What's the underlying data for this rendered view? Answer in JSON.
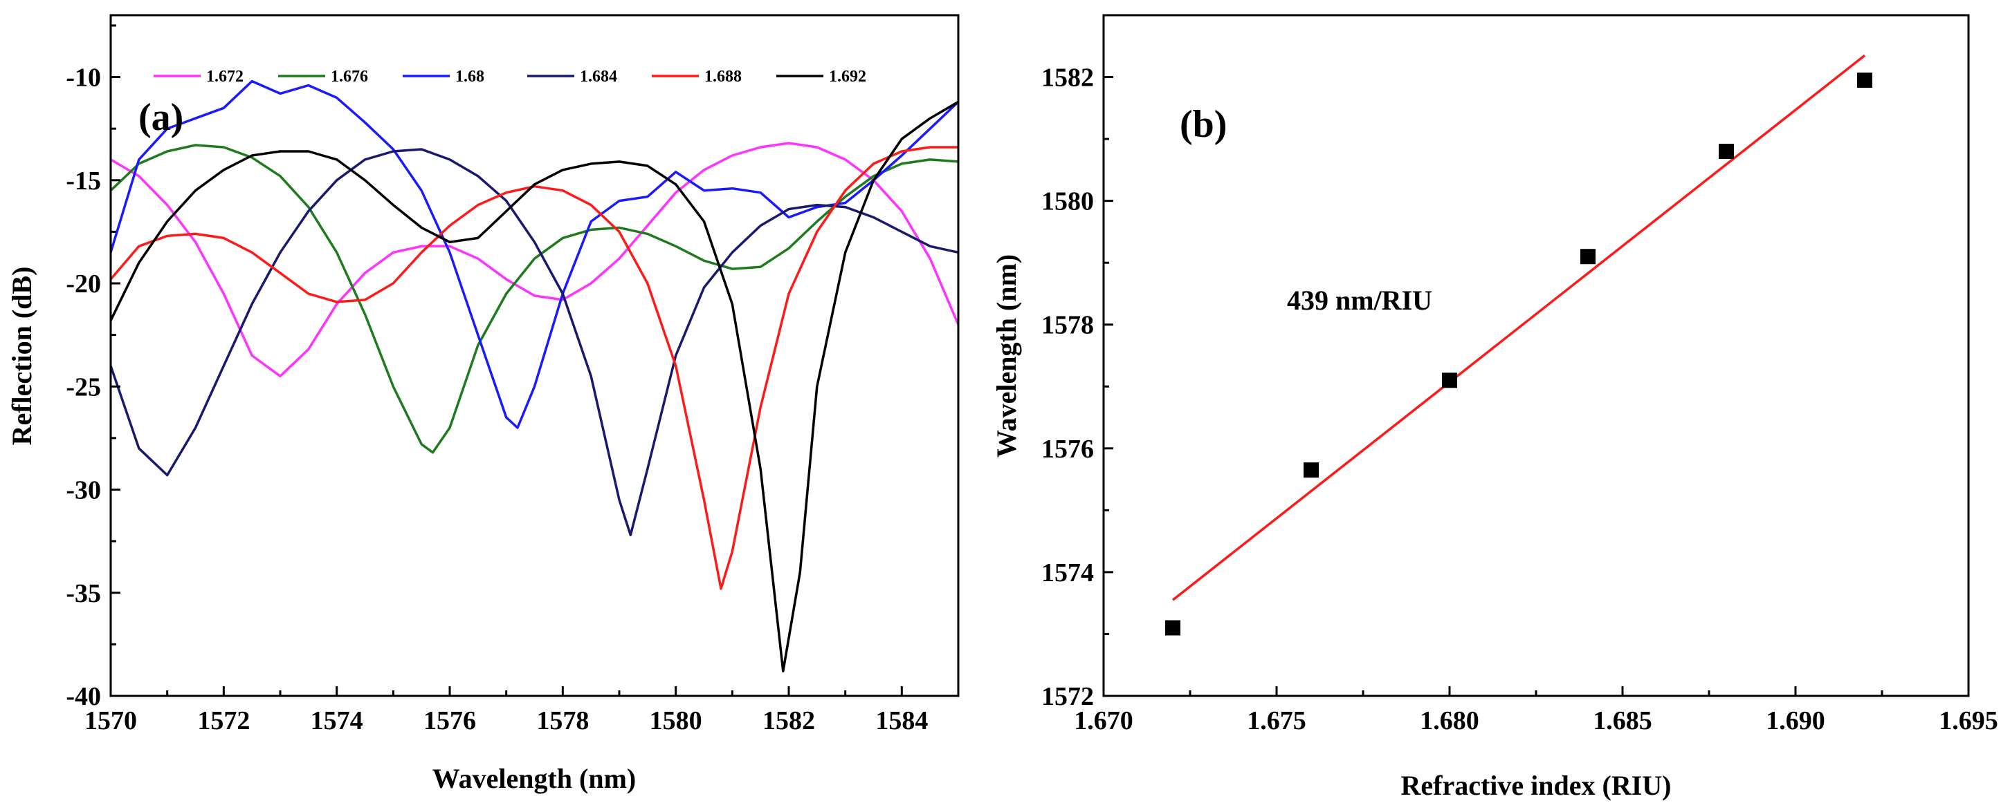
{
  "colors": {
    "s1672": "#ff33ff",
    "s1676": "#1e7b1e",
    "s168": "#1a1aff",
    "s1684": "#191970",
    "s1688": "#ff1a1a",
    "s1692": "#000000",
    "fit": "#ff1a1a",
    "points": "#000000"
  },
  "chart_data": [
    {
      "panel": "(a)",
      "type": "line",
      "xlabel": "Wavelength (nm)",
      "ylabel": "Reflection (dB)",
      "xlim": [
        1570,
        1585
      ],
      "ylim": [
        -40,
        -7
      ],
      "xticks": [
        1570,
        1572,
        1574,
        1576,
        1578,
        1580,
        1582,
        1584
      ],
      "yticks": [
        -40,
        -35,
        -30,
        -25,
        -20,
        -15,
        -10
      ],
      "legend_position": "top",
      "series": [
        {
          "name": "1.672",
          "color_key": "s1672",
          "x": [
            1570,
            1570.5,
            1571,
            1571.5,
            1572,
            1572.5,
            1573,
            1573.5,
            1574,
            1574.5,
            1575,
            1575.5,
            1576,
            1576.5,
            1577,
            1577.5,
            1578,
            1578.5,
            1579,
            1579.5,
            1580,
            1580.5,
            1581,
            1581.5,
            1582,
            1582.5,
            1583,
            1583.5,
            1584,
            1584.5,
            1585
          ],
          "y": [
            -14,
            -14.8,
            -16.2,
            -18,
            -20.5,
            -23.5,
            -24.5,
            -23.2,
            -21,
            -19.5,
            -18.5,
            -18.2,
            -18.2,
            -18.8,
            -19.8,
            -20.6,
            -20.8,
            -20,
            -18.8,
            -17.2,
            -15.6,
            -14.5,
            -13.8,
            -13.4,
            -13.2,
            -13.4,
            -14,
            -15,
            -16.5,
            -18.8,
            -22
          ]
        },
        {
          "name": "1.676",
          "color_key": "s1676",
          "x": [
            1570,
            1570.5,
            1571,
            1571.5,
            1572,
            1572.5,
            1573,
            1573.5,
            1574,
            1574.5,
            1575,
            1575.5,
            1575.7,
            1576,
            1576.5,
            1577,
            1577.5,
            1578,
            1578.5,
            1579,
            1579.5,
            1580,
            1580.5,
            1581,
            1581.5,
            1582,
            1582.5,
            1583,
            1583.5,
            1584,
            1584.5,
            1585
          ],
          "y": [
            -15.5,
            -14.2,
            -13.6,
            -13.3,
            -13.4,
            -13.9,
            -14.8,
            -16.3,
            -18.5,
            -21.5,
            -25,
            -27.8,
            -28.2,
            -27,
            -23,
            -20.5,
            -18.8,
            -17.8,
            -17.4,
            -17.3,
            -17.6,
            -18.2,
            -18.9,
            -19.3,
            -19.2,
            -18.3,
            -17,
            -15.8,
            -14.8,
            -14.2,
            -14,
            -14.1
          ]
        },
        {
          "name": "1.68",
          "color_key": "s168",
          "x": [
            1570,
            1570.5,
            1571,
            1571.5,
            1572,
            1572.5,
            1573,
            1573.5,
            1574,
            1574.5,
            1575,
            1575.5,
            1576,
            1576.5,
            1577,
            1577.2,
            1577.5,
            1578,
            1578.5,
            1579,
            1579.5,
            1580,
            1580.5,
            1581,
            1581.5,
            1582,
            1582.5,
            1583,
            1583.5,
            1584,
            1584.5,
            1585
          ],
          "y": [
            -18.5,
            -14,
            -12.5,
            -12,
            -11.5,
            -10.2,
            -10.8,
            -10.4,
            -11,
            -12.2,
            -13.5,
            -15.5,
            -18.5,
            -22.5,
            -26.5,
            -27,
            -25,
            -20.5,
            -17,
            -16,
            -15.8,
            -14.6,
            -15.5,
            -15.4,
            -15.6,
            -16.8,
            -16.3,
            -16.1,
            -15,
            -13.8,
            -12.5,
            -11.2
          ]
        },
        {
          "name": "1.684",
          "color_key": "s1684",
          "x": [
            1570,
            1570.5,
            1571,
            1571.5,
            1572,
            1572.5,
            1573,
            1573.5,
            1574,
            1574.5,
            1575,
            1575.5,
            1576,
            1576.5,
            1577,
            1577.5,
            1578,
            1578.5,
            1579,
            1579.2,
            1579.5,
            1580,
            1580.5,
            1581,
            1581.5,
            1582,
            1582.5,
            1583,
            1583.5,
            1584,
            1584.5,
            1585
          ],
          "y": [
            -24,
            -28,
            -29.3,
            -27,
            -24,
            -21,
            -18.5,
            -16.5,
            -15,
            -14,
            -13.6,
            -13.5,
            -14,
            -14.8,
            -16,
            -18,
            -20.5,
            -24.5,
            -30.5,
            -32.2,
            -29,
            -23.5,
            -20.2,
            -18.5,
            -17.2,
            -16.4,
            -16.2,
            -16.3,
            -16.8,
            -17.5,
            -18.2,
            -18.5
          ]
        },
        {
          "name": "1.688",
          "color_key": "s1688",
          "x": [
            1570,
            1570.5,
            1571,
            1571.5,
            1572,
            1572.5,
            1573,
            1573.5,
            1574,
            1574.5,
            1575,
            1575.5,
            1576,
            1576.5,
            1577,
            1577.5,
            1578,
            1578.5,
            1579,
            1579.5,
            1580,
            1580.5,
            1580.8,
            1581,
            1581.5,
            1582,
            1582.5,
            1583,
            1583.5,
            1584,
            1584.5,
            1585
          ],
          "y": [
            -19.8,
            -18.2,
            -17.7,
            -17.6,
            -17.8,
            -18.5,
            -19.5,
            -20.5,
            -20.9,
            -20.8,
            -20,
            -18.5,
            -17.2,
            -16.2,
            -15.6,
            -15.3,
            -15.5,
            -16.2,
            -17.5,
            -20,
            -24,
            -30.5,
            -34.8,
            -33,
            -26,
            -20.5,
            -17.5,
            -15.5,
            -14.2,
            -13.6,
            -13.4,
            -13.4
          ]
        },
        {
          "name": "1.692",
          "color_key": "s1692",
          "x": [
            1570,
            1570.5,
            1571,
            1571.5,
            1572,
            1572.5,
            1573,
            1573.5,
            1574,
            1574.5,
            1575,
            1575.5,
            1576,
            1576.5,
            1577,
            1577.5,
            1578,
            1578.5,
            1579,
            1579.5,
            1580,
            1580.5,
            1581,
            1581.5,
            1581.9,
            1582.2,
            1582.5,
            1583,
            1583.5,
            1584,
            1584.5,
            1585
          ],
          "y": [
            -21.8,
            -19,
            -17,
            -15.5,
            -14.5,
            -13.8,
            -13.6,
            -13.6,
            -14,
            -15,
            -16.2,
            -17.3,
            -18,
            -17.8,
            -16.5,
            -15.2,
            -14.5,
            -14.2,
            -14.1,
            -14.3,
            -15.2,
            -17,
            -21,
            -29,
            -38.8,
            -34,
            -25,
            -18.5,
            -15,
            -13,
            -12,
            -11.2
          ]
        }
      ]
    },
    {
      "panel": "(b)",
      "type": "scatter",
      "xlabel": "Refractive index (RIU)",
      "ylabel": "Wavelength (nm)",
      "xlim": [
        1.67,
        1.695
      ],
      "ylim": [
        1572,
        1583
      ],
      "xticks": [
        1.67,
        1.675,
        1.68,
        1.685,
        1.69,
        1.695
      ],
      "xtick_labels": [
        "1.670",
        "1.675",
        "1.680",
        "1.685",
        "1.690",
        "1.695"
      ],
      "yticks": [
        1572,
        1574,
        1576,
        1578,
        1580,
        1582
      ],
      "annotation": "439 nm/RIU",
      "points": {
        "x": [
          1.672,
          1.676,
          1.68,
          1.684,
          1.688,
          1.692
        ],
        "y": [
          1573.1,
          1575.65,
          1577.1,
          1579.1,
          1580.8,
          1581.95
        ]
      },
      "fit_line": {
        "x": [
          1.672,
          1.692
        ],
        "y": [
          1573.55,
          1582.35
        ]
      }
    }
  ]
}
